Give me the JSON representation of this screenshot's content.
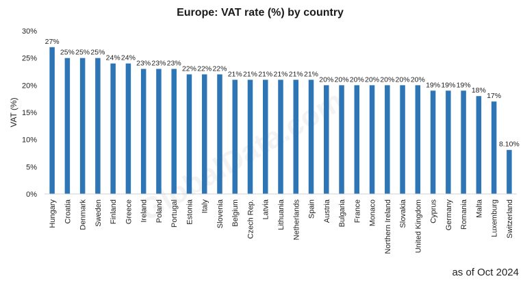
{
  "chart_data": {
    "type": "bar",
    "title": "Europe: VAT rate (%) by country",
    "xlabel": "",
    "ylabel": "VAT (%)",
    "ylim": [
      0,
      30
    ],
    "yticks": [
      "0%",
      "5%",
      "10%",
      "15%",
      "20%",
      "25%",
      "30%"
    ],
    "grid": false,
    "bar_color": "#2e75b6",
    "categories": [
      "Hungary",
      "Croatia",
      "Denmark",
      "Sweden",
      "Finland",
      "Greece",
      "Ireland",
      "Poland",
      "Portugal",
      "Estonia",
      "Italy",
      "Slovenia",
      "Belgium",
      "Czech Rep.",
      "Latvia",
      "Lithuania",
      "Netherlands",
      "Spain",
      "Austria",
      "Bulgaria",
      "France",
      "Monaco",
      "Northern Ireland",
      "Slovakia",
      "United Kingdom",
      "Cyprus",
      "Germany",
      "Romania",
      "Malta",
      "Luxemburg",
      "Switzerland"
    ],
    "values": [
      27,
      25,
      25,
      25,
      24,
      24,
      23,
      23,
      23,
      22,
      22,
      22,
      21,
      21,
      21,
      21,
      21,
      21,
      20,
      20,
      20,
      20,
      20,
      20,
      20,
      19,
      19,
      19,
      18,
      17,
      8.1
    ],
    "data_labels": [
      "27%",
      "25%",
      "25%",
      "25%",
      "24%",
      "24%",
      "23%",
      "23%",
      "23%",
      "22%",
      "22%",
      "22%",
      "21%",
      "21%",
      "21%",
      "21%",
      "21%",
      "21%",
      "20%",
      "20%",
      "20%",
      "20%",
      "20%",
      "20%",
      "20%",
      "19%",
      "19%",
      "19%",
      "18%",
      "17%",
      "8.10%"
    ],
    "annotation": "as of Oct 2024",
    "watermark": "GlobalData.com"
  }
}
